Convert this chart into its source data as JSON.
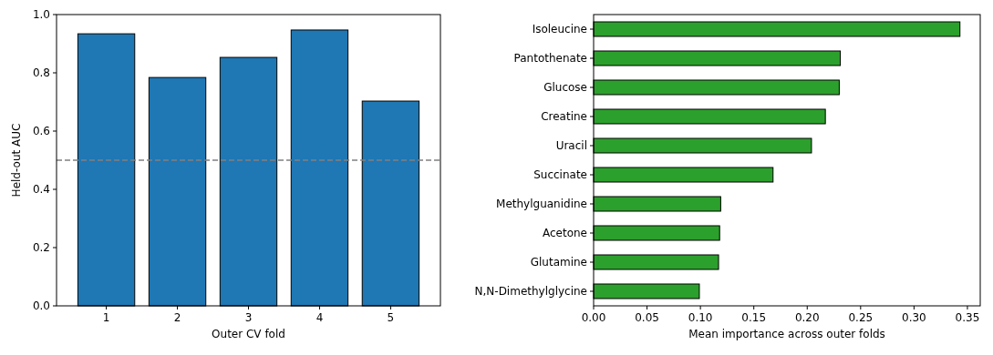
{
  "chart_data": [
    {
      "type": "bar",
      "categories": [
        "1",
        "2",
        "3",
        "4",
        "5"
      ],
      "values": [
        0.934,
        0.784,
        0.853,
        0.947,
        0.703
      ],
      "color": "#1f77b4",
      "ylim": [
        0,
        1
      ],
      "yticks": [
        {
          "value": 0,
          "label": "0.0"
        },
        {
          "value": 0.2,
          "label": "0.2"
        },
        {
          "value": 0.4,
          "label": "0.4"
        },
        {
          "value": 0.6,
          "label": "0.6"
        },
        {
          "value": 0.8,
          "label": "0.8"
        },
        {
          "value": 1,
          "label": "1.0"
        }
      ],
      "xlabel": "Outer CV fold",
      "ylabel": "Held-out AUC",
      "ref_lines": [
        {
          "axis": "y",
          "value": 0.5,
          "color": "#808080",
          "line_style": "dashed"
        }
      ]
    },
    {
      "type": "bar",
      "orientation": "horizontal",
      "categories": [
        "Isoleucine",
        "Pantothenate",
        "Glucose",
        "Creatine",
        "Uracil",
        "Succinate",
        "Methylguanidine",
        "Acetone",
        "Glutamine",
        "N,N-Dimethylglycine"
      ],
      "values": [
        0.343,
        0.231,
        0.23,
        0.217,
        0.204,
        0.168,
        0.119,
        0.118,
        0.117,
        0.099
      ],
      "color": "#2ca02c",
      "xlim": [
        0,
        0.362
      ],
      "xticks": [
        {
          "value": 0,
          "label": "0.00"
        },
        {
          "value": 0.05,
          "label": "0.05"
        },
        {
          "value": 0.1,
          "label": "0.10"
        },
        {
          "value": 0.15,
          "label": "0.15"
        },
        {
          "value": 0.2,
          "label": "0.20"
        },
        {
          "value": 0.25,
          "label": "0.25"
        },
        {
          "value": 0.3,
          "label": "0.30"
        },
        {
          "value": 0.35,
          "label": "0.35"
        }
      ],
      "xlabel": "Mean importance across outer folds"
    }
  ]
}
